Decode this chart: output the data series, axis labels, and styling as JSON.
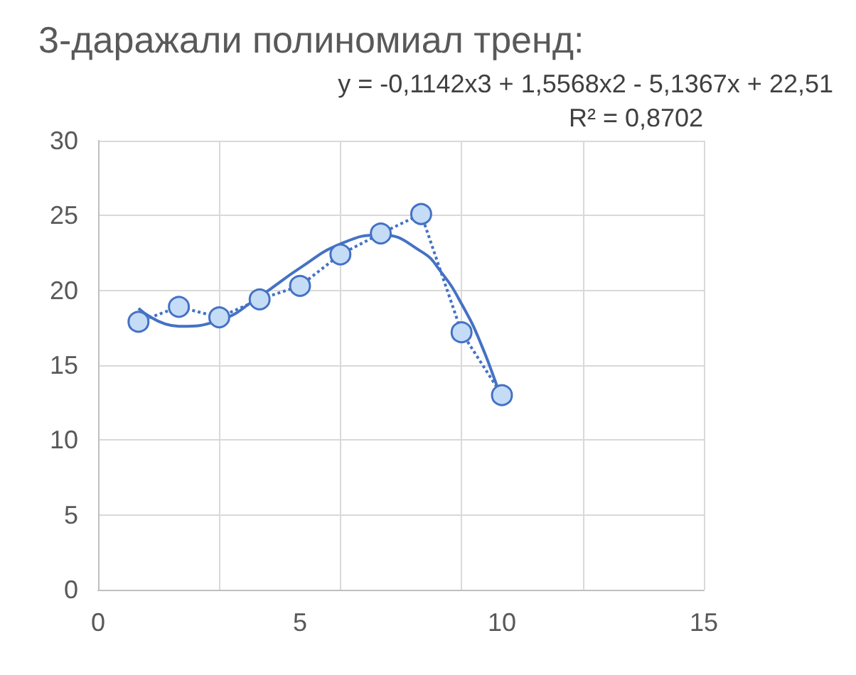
{
  "chart_data": {
    "type": "line",
    "title": "3-даражали полиномиал тренд:",
    "annotations": [
      "y = -0,1142x3 + 1,5568x2 - 5,1367x + 22,51",
      "R² = 0,8702"
    ],
    "series": [
      {
        "color": "#4472c4",
        "marker": "circle",
        "line_style": "dotted",
        "x": [
          1,
          2,
          3,
          4,
          5,
          6,
          7,
          8,
          9,
          10
        ],
        "values": [
          17.9,
          18.9,
          18.2,
          19.4,
          20.3,
          22.4,
          23.8,
          25.1,
          17.2,
          13.0
        ]
      },
      {
        "color": "#4472c4",
        "marker": "none",
        "line_style": "solid",
        "x": [
          1,
          2,
          3,
          4,
          5,
          6,
          7,
          8,
          8.5,
          9,
          9.5,
          10
        ],
        "values": [
          18.8,
          17.6,
          18.0,
          19.6,
          21.5,
          23.1,
          23.7,
          22.6,
          21.2,
          19.1,
          16.3,
          12.6
        ]
      }
    ],
    "xlim": [
      0,
      15
    ],
    "xticks": [
      0,
      5,
      10,
      15
    ],
    "ylim": [
      0,
      30
    ],
    "yticks": [
      0,
      5,
      10,
      15,
      20,
      25,
      30
    ],
    "grid": true
  }
}
